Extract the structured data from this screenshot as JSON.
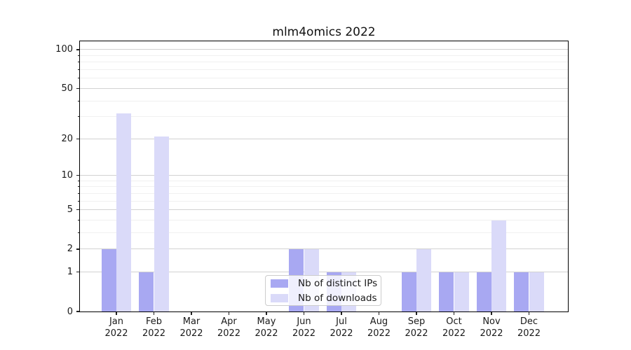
{
  "title": "mlm4omics 2022",
  "legend": {
    "items": [
      {
        "label": "Nb of distinct IPs",
        "color": "#a8a8f2"
      },
      {
        "label": "Nb of downloads",
        "color": "#dadaf9"
      }
    ]
  },
  "chart_data": {
    "type": "bar",
    "title": "mlm4omics 2022",
    "categories": [
      "Jan 2022",
      "Feb 2022",
      "Mar 2022",
      "Apr 2022",
      "May 2022",
      "Jun 2022",
      "Jul 2022",
      "Aug 2022",
      "Sep 2022",
      "Oct 2022",
      "Nov 2022",
      "Dec 2022"
    ],
    "series": [
      {
        "name": "Nb of distinct IPs",
        "color": "#a8a8f2",
        "values": [
          2,
          1,
          0,
          0,
          0,
          2,
          1,
          0,
          1,
          1,
          1,
          1
        ]
      },
      {
        "name": "Nb of downloads",
        "color": "#dadaf9",
        "values": [
          32,
          21,
          0,
          0,
          0,
          2,
          1,
          0,
          2,
          1,
          4,
          1
        ]
      }
    ],
    "xlabel": "",
    "ylabel": "",
    "yscale": "log1p",
    "yticks": [
      0,
      1,
      2,
      5,
      10,
      20,
      50,
      100
    ],
    "minor_yticks": [
      3,
      4,
      6,
      7,
      8,
      9,
      30,
      40,
      60,
      70,
      80,
      90
    ],
    "ylim": [
      0,
      115
    ],
    "grid": true,
    "legend_position": "inside lower center-left"
  }
}
